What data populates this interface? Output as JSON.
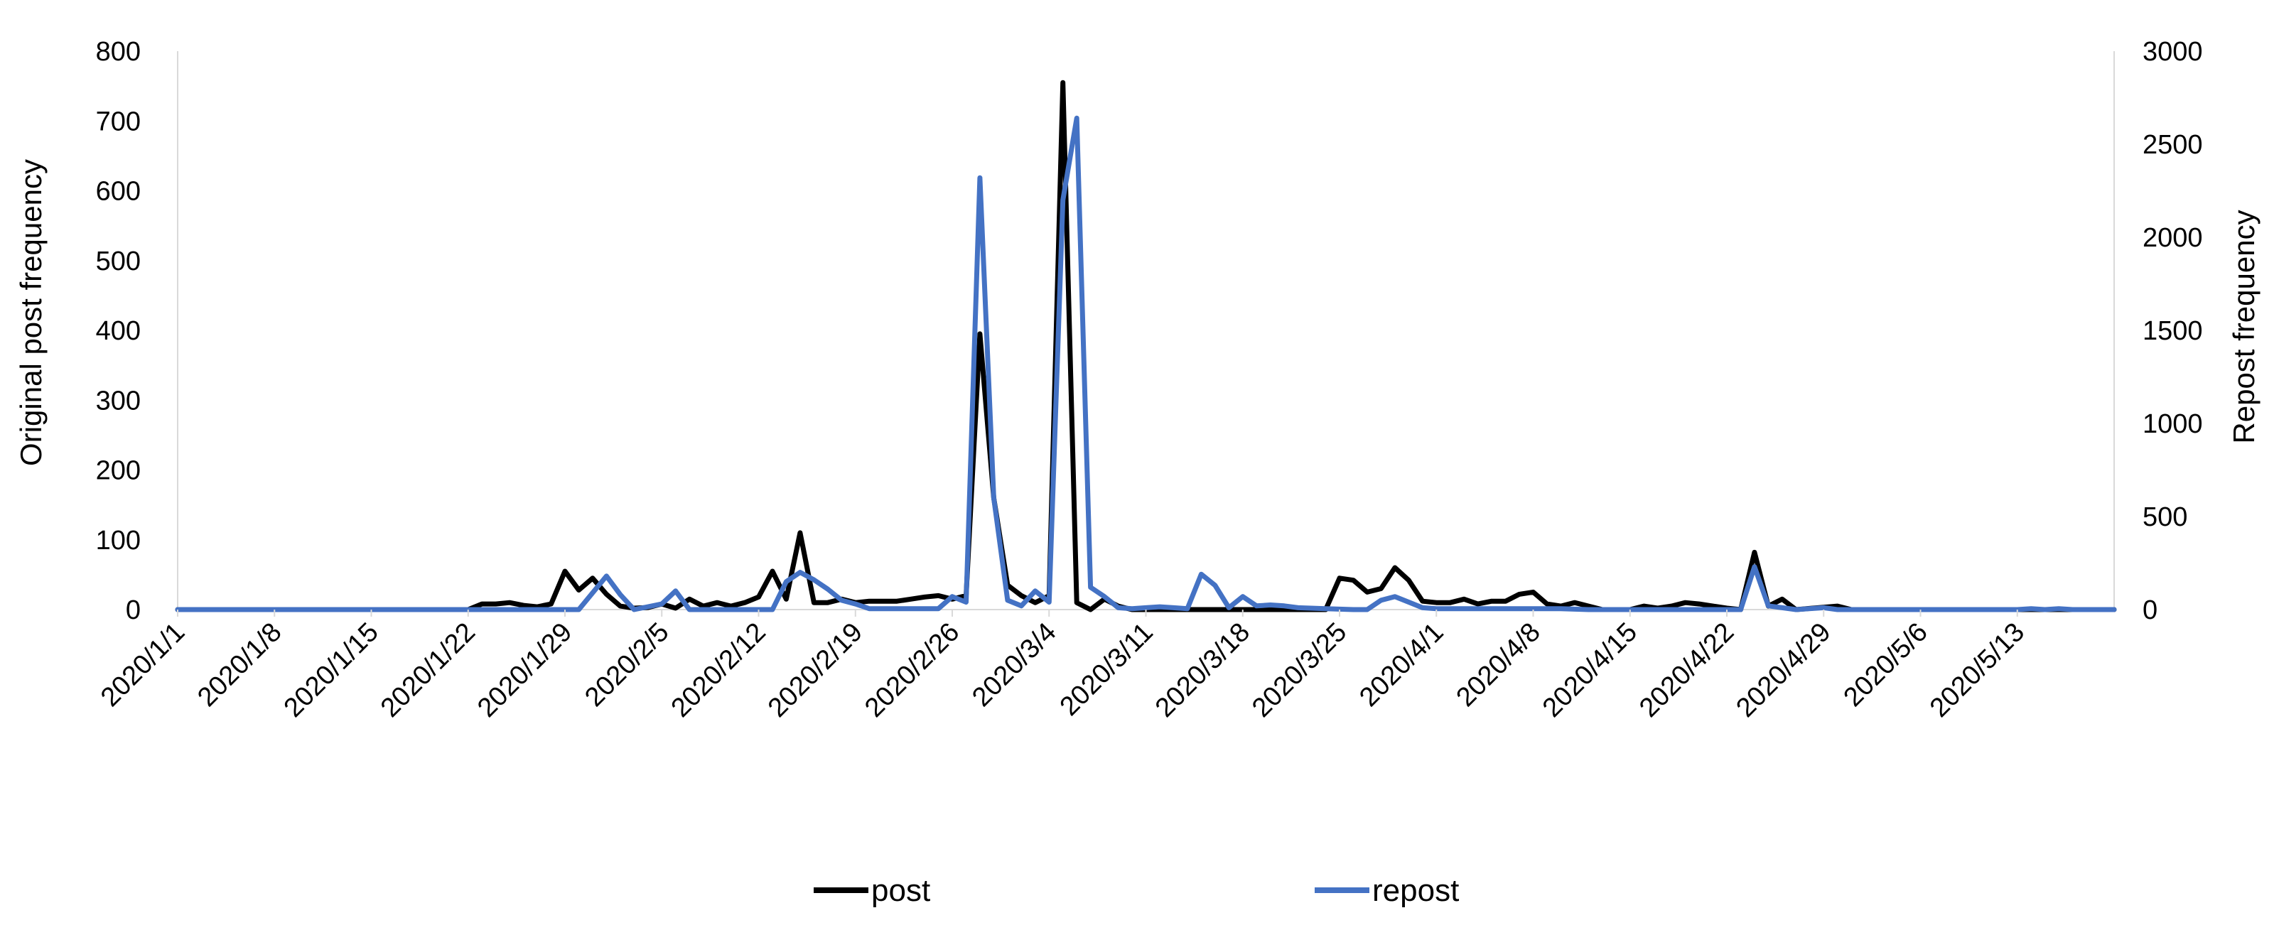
{
  "chart_data": {
    "type": "line",
    "xlabel": "",
    "ylabel_left": "Original post frequency",
    "ylabel_right": "Repost frequency",
    "ylim_left": [
      0,
      800
    ],
    "ylim_right": [
      0,
      3000
    ],
    "yticks_left": [
      "0",
      "100",
      "200",
      "300",
      "400",
      "500",
      "600",
      "700",
      "800"
    ],
    "yticks_right": [
      "0",
      "500",
      "1000",
      "1500",
      "2000",
      "2500",
      "3000"
    ],
    "grid": false,
    "legend_position": "bottom",
    "x_start": "2020/1/1",
    "x_end": "2020/5/20",
    "x_tick_labels": [
      "2020/1/1",
      "2020/1/8",
      "2020/1/15",
      "2020/1/22",
      "2020/1/29",
      "2020/2/5",
      "2020/2/12",
      "2020/2/19",
      "2020/2/26",
      "2020/3/4",
      "2020/3/11",
      "2020/3/18",
      "2020/3/25",
      "2020/4/1",
      "2020/4/8",
      "2020/4/15",
      "2020/4/22",
      "2020/4/29",
      "2020/5/6",
      "2020/5/13"
    ],
    "series": [
      {
        "name": "post",
        "color": "#000000",
        "axis": "left",
        "points": [
          [
            "2020/1/1",
            0
          ],
          [
            "2020/1/22",
            0
          ],
          [
            "2020/1/23",
            8
          ],
          [
            "2020/1/24",
            8
          ],
          [
            "2020/1/25",
            10
          ],
          [
            "2020/1/26",
            6
          ],
          [
            "2020/1/27",
            4
          ],
          [
            "2020/1/28",
            8
          ],
          [
            "2020/1/29",
            55
          ],
          [
            "2020/1/30",
            28
          ],
          [
            "2020/1/31",
            45
          ],
          [
            "2020/2/1",
            22
          ],
          [
            "2020/2/2",
            5
          ],
          [
            "2020/2/3",
            2
          ],
          [
            "2020/2/4",
            3
          ],
          [
            "2020/2/5",
            8
          ],
          [
            "2020/2/6",
            2
          ],
          [
            "2020/2/7",
            15
          ],
          [
            "2020/2/8",
            5
          ],
          [
            "2020/2/9",
            10
          ],
          [
            "2020/2/10",
            5
          ],
          [
            "2020/2/11",
            10
          ],
          [
            "2020/2/12",
            18
          ],
          [
            "2020/2/13",
            55
          ],
          [
            "2020/2/14",
            15
          ],
          [
            "2020/2/15",
            110
          ],
          [
            "2020/2/16",
            10
          ],
          [
            "2020/2/17",
            10
          ],
          [
            "2020/2/18",
            15
          ],
          [
            "2020/2/19",
            10
          ],
          [
            "2020/2/20",
            12
          ],
          [
            "2020/2/21",
            12
          ],
          [
            "2020/2/22",
            12
          ],
          [
            "2020/2/23",
            15
          ],
          [
            "2020/2/24",
            18
          ],
          [
            "2020/2/25",
            20
          ],
          [
            "2020/2/26",
            15
          ],
          [
            "2020/2/27",
            20
          ],
          [
            "2020/2/28",
            395
          ],
          [
            "2020/2/29",
            160
          ],
          [
            "2020/3/1",
            35
          ],
          [
            "2020/3/2",
            20
          ],
          [
            "2020/3/3",
            10
          ],
          [
            "2020/3/4",
            20
          ],
          [
            "2020/3/5",
            755
          ],
          [
            "2020/3/6",
            10
          ],
          [
            "2020/3/7",
            0
          ],
          [
            "2020/3/8",
            15
          ],
          [
            "2020/3/9",
            5
          ],
          [
            "2020/3/10",
            0
          ],
          [
            "2020/3/24",
            0
          ],
          [
            "2020/3/25",
            45
          ],
          [
            "2020/3/26",
            42
          ],
          [
            "2020/3/27",
            25
          ],
          [
            "2020/3/28",
            30
          ],
          [
            "2020/3/29",
            60
          ],
          [
            "2020/3/30",
            42
          ],
          [
            "2020/3/31",
            12
          ],
          [
            "2020/4/1",
            10
          ],
          [
            "2020/4/2",
            10
          ],
          [
            "2020/4/3",
            15
          ],
          [
            "2020/4/4",
            8
          ],
          [
            "2020/4/5",
            12
          ],
          [
            "2020/4/6",
            12
          ],
          [
            "2020/4/7",
            22
          ],
          [
            "2020/4/8",
            25
          ],
          [
            "2020/4/9",
            8
          ],
          [
            "2020/4/10",
            5
          ],
          [
            "2020/4/11",
            10
          ],
          [
            "2020/4/12",
            5
          ],
          [
            "2020/4/13",
            0
          ],
          [
            "2020/4/15",
            0
          ],
          [
            "2020/4/16",
            5
          ],
          [
            "2020/4/17",
            2
          ],
          [
            "2020/4/18",
            5
          ],
          [
            "2020/4/19",
            10
          ],
          [
            "2020/4/20",
            8
          ],
          [
            "2020/4/21",
            5
          ],
          [
            "2020/4/22",
            2
          ],
          [
            "2020/4/23",
            0
          ],
          [
            "2020/4/24",
            82
          ],
          [
            "2020/4/25",
            5
          ],
          [
            "2020/4/26",
            15
          ],
          [
            "2020/4/27",
            0
          ],
          [
            "2020/4/30",
            5
          ],
          [
            "2020/5/1",
            0
          ],
          [
            "2020/5/20",
            0
          ]
        ]
      },
      {
        "name": "repost",
        "color": "#4472c4",
        "axis": "right",
        "points": [
          [
            "2020/1/1",
            0
          ],
          [
            "2020/1/30",
            0
          ],
          [
            "2020/2/1",
            180
          ],
          [
            "2020/2/2",
            80
          ],
          [
            "2020/2/3",
            0
          ],
          [
            "2020/2/5",
            30
          ],
          [
            "2020/2/6",
            100
          ],
          [
            "2020/2/7",
            0
          ],
          [
            "2020/2/13",
            0
          ],
          [
            "2020/2/14",
            150
          ],
          [
            "2020/2/15",
            200
          ],
          [
            "2020/2/16",
            160
          ],
          [
            "2020/2/17",
            110
          ],
          [
            "2020/2/18",
            50
          ],
          [
            "2020/2/19",
            30
          ],
          [
            "2020/2/20",
            5
          ],
          [
            "2020/2/25",
            5
          ],
          [
            "2020/2/26",
            70
          ],
          [
            "2020/2/27",
            40
          ],
          [
            "2020/2/28",
            2320
          ],
          [
            "2020/2/29",
            600
          ],
          [
            "2020/3/1",
            50
          ],
          [
            "2020/3/2",
            20
          ],
          [
            "2020/3/3",
            100
          ],
          [
            "2020/3/4",
            40
          ],
          [
            "2020/3/5",
            2200
          ],
          [
            "2020/3/6",
            2640
          ],
          [
            "2020/3/7",
            120
          ],
          [
            "2020/3/8",
            70
          ],
          [
            "2020/3/9",
            10
          ],
          [
            "2020/3/10",
            5
          ],
          [
            "2020/3/11",
            10
          ],
          [
            "2020/3/12",
            15
          ],
          [
            "2020/3/13",
            10
          ],
          [
            "2020/3/14",
            5
          ],
          [
            "2020/3/15",
            190
          ],
          [
            "2020/3/16",
            130
          ],
          [
            "2020/3/17",
            10
          ],
          [
            "2020/3/18",
            70
          ],
          [
            "2020/3/19",
            20
          ],
          [
            "2020/3/20",
            25
          ],
          [
            "2020/3/21",
            20
          ],
          [
            "2020/3/22",
            10
          ],
          [
            "2020/3/24",
            5
          ],
          [
            "2020/3/26",
            0
          ],
          [
            "2020/3/27",
            0
          ],
          [
            "2020/3/28",
            50
          ],
          [
            "2020/3/29",
            70
          ],
          [
            "2020/3/30",
            40
          ],
          [
            "2020/3/31",
            10
          ],
          [
            "2020/4/1",
            5
          ],
          [
            "2020/4/10",
            5
          ],
          [
            "2020/4/12",
            0
          ],
          [
            "2020/4/23",
            0
          ],
          [
            "2020/4/24",
            230
          ],
          [
            "2020/4/25",
            20
          ],
          [
            "2020/4/26",
            10
          ],
          [
            "2020/4/27",
            0
          ],
          [
            "2020/4/29",
            10
          ],
          [
            "2020/4/30",
            0
          ],
          [
            "2020/5/13",
            0
          ],
          [
            "2020/5/14",
            5
          ],
          [
            "2020/5/15",
            0
          ],
          [
            "2020/5/16",
            5
          ],
          [
            "2020/5/17",
            0
          ],
          [
            "2020/5/20",
            0
          ]
        ]
      }
    ]
  }
}
